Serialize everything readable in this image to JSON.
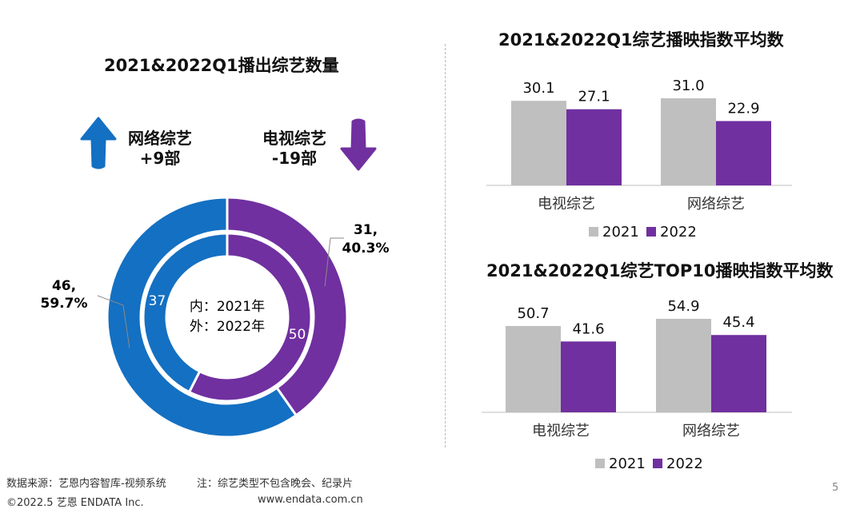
{
  "left_panel": {
    "title": "2021&2022Q1播出综艺数量",
    "online": {
      "name": "网络综艺",
      "change": "+9部",
      "color": "#1470c2"
    },
    "tv": {
      "name": "电视综艺",
      "change": "-19部",
      "color": "#7030a0"
    },
    "center_text": [
      "内：2021年",
      "外：2022年"
    ]
  },
  "footer": {
    "source": "数据来源：艺恩内容智库-视频系统",
    "note": "注：综艺类型不包含晚会、纪录片",
    "copyright": "©2022.5 艺恩 ENDATA Inc.",
    "website": "www.endata.com.cn",
    "page_number": "5"
  },
  "chart_data": [
    {
      "type": "pie",
      "subtype": "donut",
      "title": "2021&2022Q1播出综艺数量",
      "rings": [
        {
          "name": "2021",
          "position": "inner",
          "slices": [
            {
              "label": "网络综艺",
              "value": 37
            },
            {
              "label": "电视综艺",
              "value": 50
            }
          ]
        },
        {
          "name": "2022",
          "position": "outer",
          "slices": [
            {
              "label": "网络综艺",
              "value": 46,
              "percent": "59.7%"
            },
            {
              "label": "电视综艺",
              "value": 31,
              "percent": "40.3%"
            }
          ]
        }
      ],
      "inner_labels": [
        "37",
        "50"
      ],
      "outer_labels": [
        {
          "line1": "46,",
          "line2": "59.7%"
        },
        {
          "line1": "31,",
          "line2": "40.3%"
        }
      ],
      "colors": {
        "网络综艺": "#1470c2",
        "电视综艺": "#7030a0"
      }
    },
    {
      "type": "bar",
      "title": "2021&2022Q1综艺播映指数平均数",
      "categories": [
        "电视综艺",
        "网络综艺"
      ],
      "series": [
        {
          "name": "2021",
          "values": [
            30.1,
            31.0
          ],
          "labels": [
            "30.1",
            "31.0"
          ],
          "color": "#bfbfbf"
        },
        {
          "name": "2022",
          "values": [
            27.1,
            22.9
          ],
          "labels": [
            "27.1",
            "22.9"
          ],
          "color": "#7030a0"
        }
      ],
      "ylim": [
        0,
        31.0
      ],
      "legend": "bottom"
    },
    {
      "type": "bar",
      "title": "2021&2022Q1综艺TOP10播映指数平均数",
      "categories": [
        "电视综艺",
        "网络综艺"
      ],
      "series": [
        {
          "name": "2021",
          "values": [
            50.7,
            54.9
          ],
          "labels": [
            "50.7",
            "54.9"
          ],
          "color": "#bfbfbf"
        },
        {
          "name": "2022",
          "values": [
            41.6,
            45.4
          ],
          "labels": [
            "41.6",
            "45.4"
          ],
          "color": "#7030a0"
        }
      ],
      "ylim": [
        0,
        54.9
      ],
      "legend": "bottom"
    }
  ]
}
